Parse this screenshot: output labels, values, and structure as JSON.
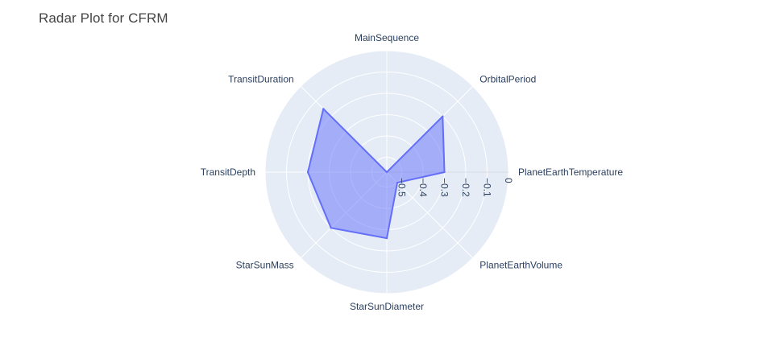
{
  "chart_data": {
    "type": "radar",
    "title": "Radar Plot for CFRM",
    "axes": [
      "PlanetEarthTemperature",
      "OrbitalPeriod",
      "MainSequence",
      "TransitDuration",
      "TransitDepth",
      "StarSunMass",
      "StarSunDiameter",
      "PlanetEarthVolume"
    ],
    "radial_range": [
      -0.57,
      0
    ],
    "radial_ticks": [
      -0.5,
      -0.4,
      -0.3,
      -0.2,
      -0.1,
      0
    ],
    "radial_tick_labels": [
      "−0.5",
      "−0.4",
      "−0.3",
      "−0.2",
      "−0.1",
      "0"
    ],
    "series": [
      {
        "values": [
          -0.3,
          -0.2,
          -0.57,
          -0.15,
          -0.2,
          -0.2,
          -0.26,
          -0.5
        ]
      }
    ],
    "colors": {
      "fill": "#636efa",
      "line": "#636efa",
      "background": "#e5ecf6",
      "grid": "#ffffff",
      "text": "#2a3f5f"
    },
    "grid": true,
    "legend": "none"
  }
}
